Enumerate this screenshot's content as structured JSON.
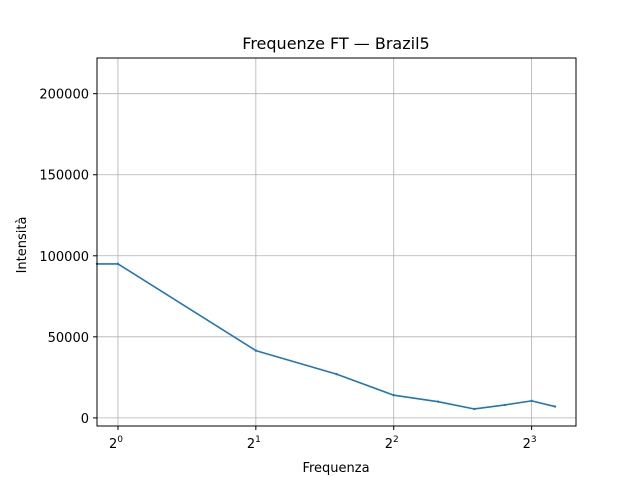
{
  "chart_data": {
    "type": "line",
    "title": "Frequenze FT — Brazil5",
    "xlabel": "Frequenza",
    "ylabel": "Intensità",
    "x_scale": "log2",
    "xlim": [
      0.9,
      10.0
    ],
    "ylim": [
      -5000,
      222000
    ],
    "x_ticks": [
      {
        "value": 1,
        "base": "2",
        "exp": "0"
      },
      {
        "value": 2,
        "base": "2",
        "exp": "1"
      },
      {
        "value": 4,
        "base": "2",
        "exp": "2"
      },
      {
        "value": 8,
        "base": "2",
        "exp": "3"
      }
    ],
    "y_ticks": [
      {
        "value": 0,
        "label": "0"
      },
      {
        "value": 50000,
        "label": "50000"
      },
      {
        "value": 100000,
        "label": "100000"
      },
      {
        "value": 150000,
        "label": "150000"
      },
      {
        "value": 200000,
        "label": "200000"
      }
    ],
    "grid": true,
    "series": [
      {
        "color": "#1f77b4",
        "x": [
          0.9,
          1,
          2,
          3,
          4,
          5,
          6,
          7,
          8,
          9
        ],
        "y": [
          95000,
          95000,
          41500,
          27000,
          14000,
          10000,
          5500,
          8000,
          10500,
          7000
        ]
      }
    ]
  }
}
